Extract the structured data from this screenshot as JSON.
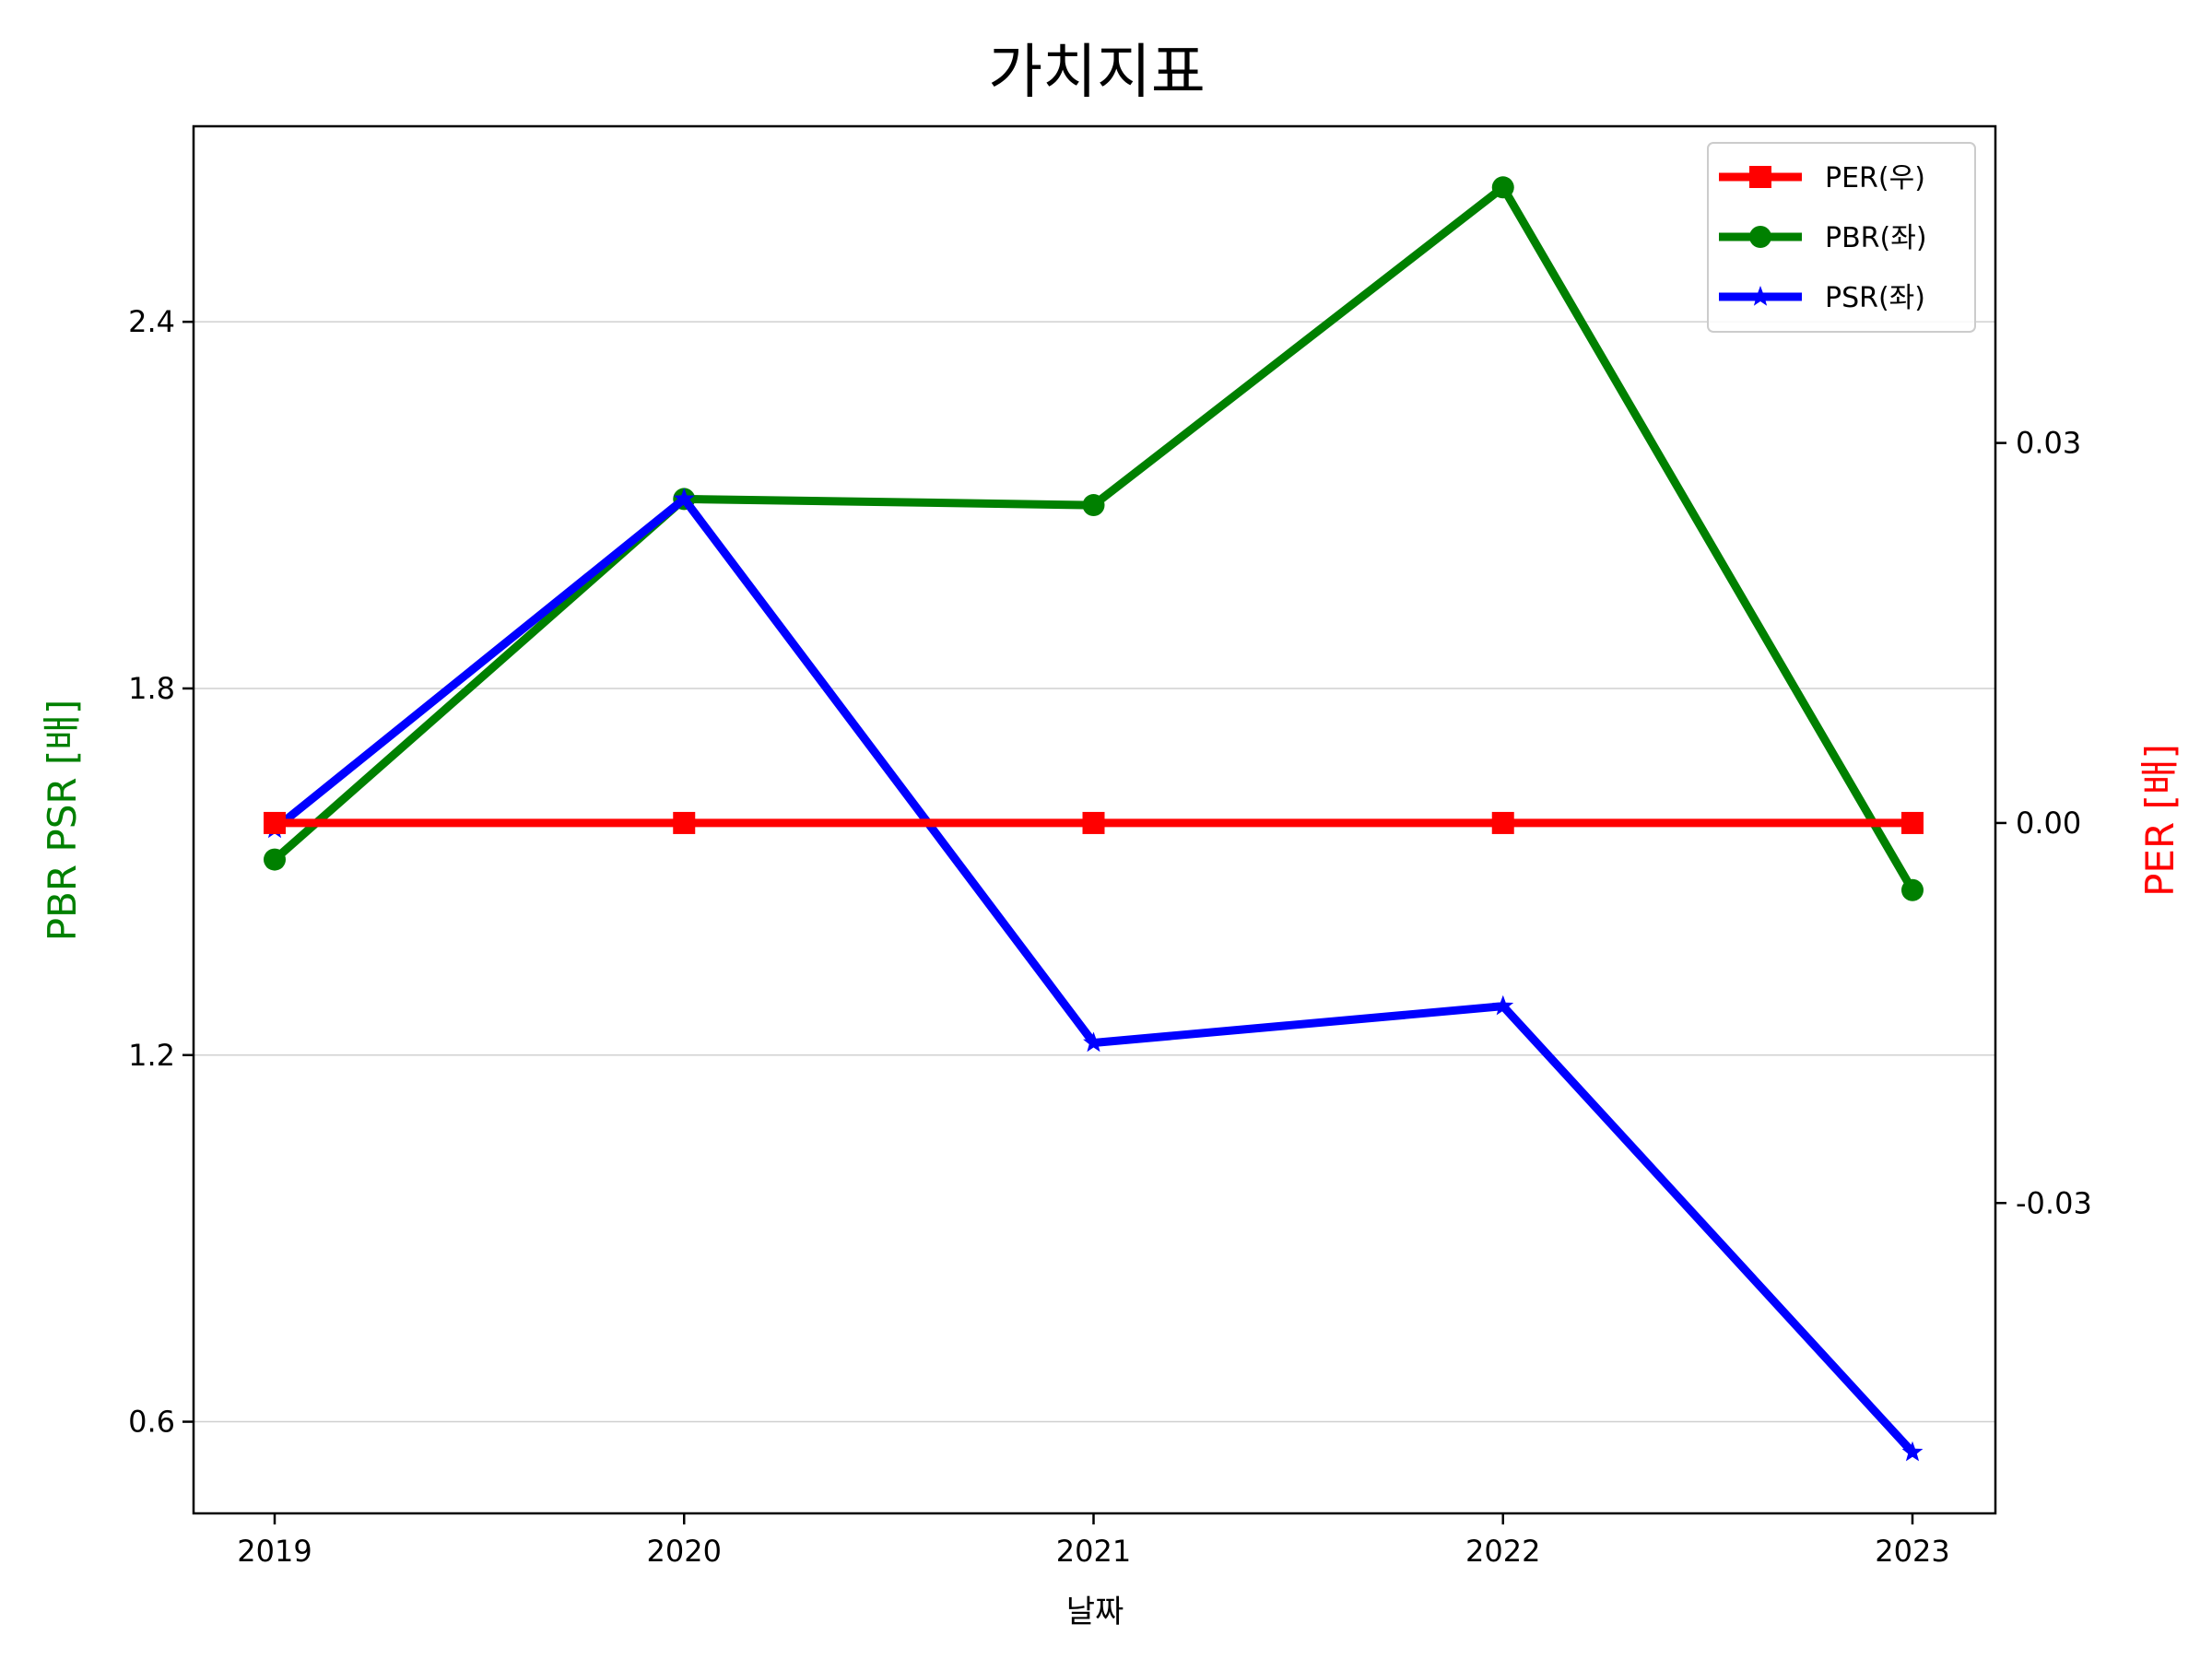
{
  "chart_data": {
    "type": "line",
    "title": "가치지표",
    "xlabel": "날짜",
    "ylabel_left": "PBR PSR [배]",
    "ylabel_right": "PER [배]",
    "categories": [
      "2019",
      "2020",
      "2021",
      "2022",
      "2023"
    ],
    "left_axis": {
      "ylim": [
        0.45,
        2.72
      ],
      "ticks": [
        0.6,
        1.2,
        1.8,
        2.4
      ],
      "tick_labels": [
        "0.6",
        "1.2",
        "1.8",
        "2.4"
      ]
    },
    "right_axis": {
      "ylim": [
        -0.0545,
        0.055
      ],
      "ticks": [
        -0.03,
        0.0,
        0.03
      ],
      "tick_labels": [
        "-0.03",
        "0.00",
        "0.03"
      ]
    },
    "grid": "horizontal (left axis)",
    "legend_position": "top-right",
    "series": [
      {
        "name": "PER(우)",
        "axis": "right",
        "color": "#ff0000",
        "marker": "square",
        "values": [
          0.0,
          0.0,
          0.0,
          0.0,
          0.0
        ]
      },
      {
        "name": "PBR(좌)",
        "axis": "left",
        "color": "#008000",
        "marker": "circle",
        "values": [
          1.52,
          2.11,
          2.1,
          2.62,
          1.47
        ]
      },
      {
        "name": "PSR(좌)",
        "axis": "left",
        "color": "#0000ff",
        "marker": "star",
        "values": [
          1.57,
          2.11,
          1.22,
          1.28,
          0.55
        ]
      }
    ]
  }
}
